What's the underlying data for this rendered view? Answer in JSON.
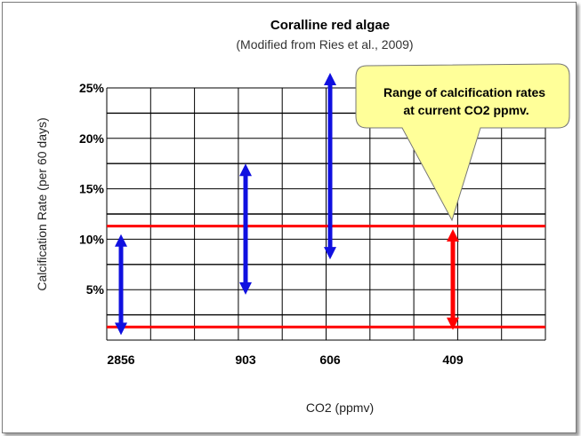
{
  "chart_data": {
    "type": "range",
    "title": "Coralline red algae",
    "subtitle": "(Modified from Ries et al., 2009)",
    "xlabel": "CO2 (ppmv)",
    "ylabel": "Calcification Rate (per 60 days)",
    "ylim": [
      0,
      25
    ],
    "yticks": [
      "5%",
      "10%",
      "15%",
      "20%",
      "25%"
    ],
    "ytick_values": [
      5,
      10,
      15,
      20,
      25
    ],
    "categories": [
      "2856",
      "903",
      "606",
      "409"
    ],
    "ranges": [
      {
        "category": "2856",
        "low": 0.5,
        "high": 10.5,
        "color": "#1010e0"
      },
      {
        "category": "903",
        "low": 4.5,
        "high": 17.5,
        "color": "#1010e0"
      },
      {
        "category": "606",
        "low": 8.0,
        "high": 26.5,
        "color": "#1010e0"
      },
      {
        "category": "409",
        "low": 1.0,
        "high": 11.0,
        "color": "#ff0000"
      }
    ],
    "reference_lines": [
      {
        "value": 11.3,
        "color": "#ff0000"
      },
      {
        "value": 1.3,
        "color": "#ff0000"
      }
    ],
    "callout": "Range of calcification rates at current CO2 ppmv.",
    "callout_lines": [
      "Range of calcification rates",
      "at current CO2 ppmv."
    ],
    "grid": true
  }
}
